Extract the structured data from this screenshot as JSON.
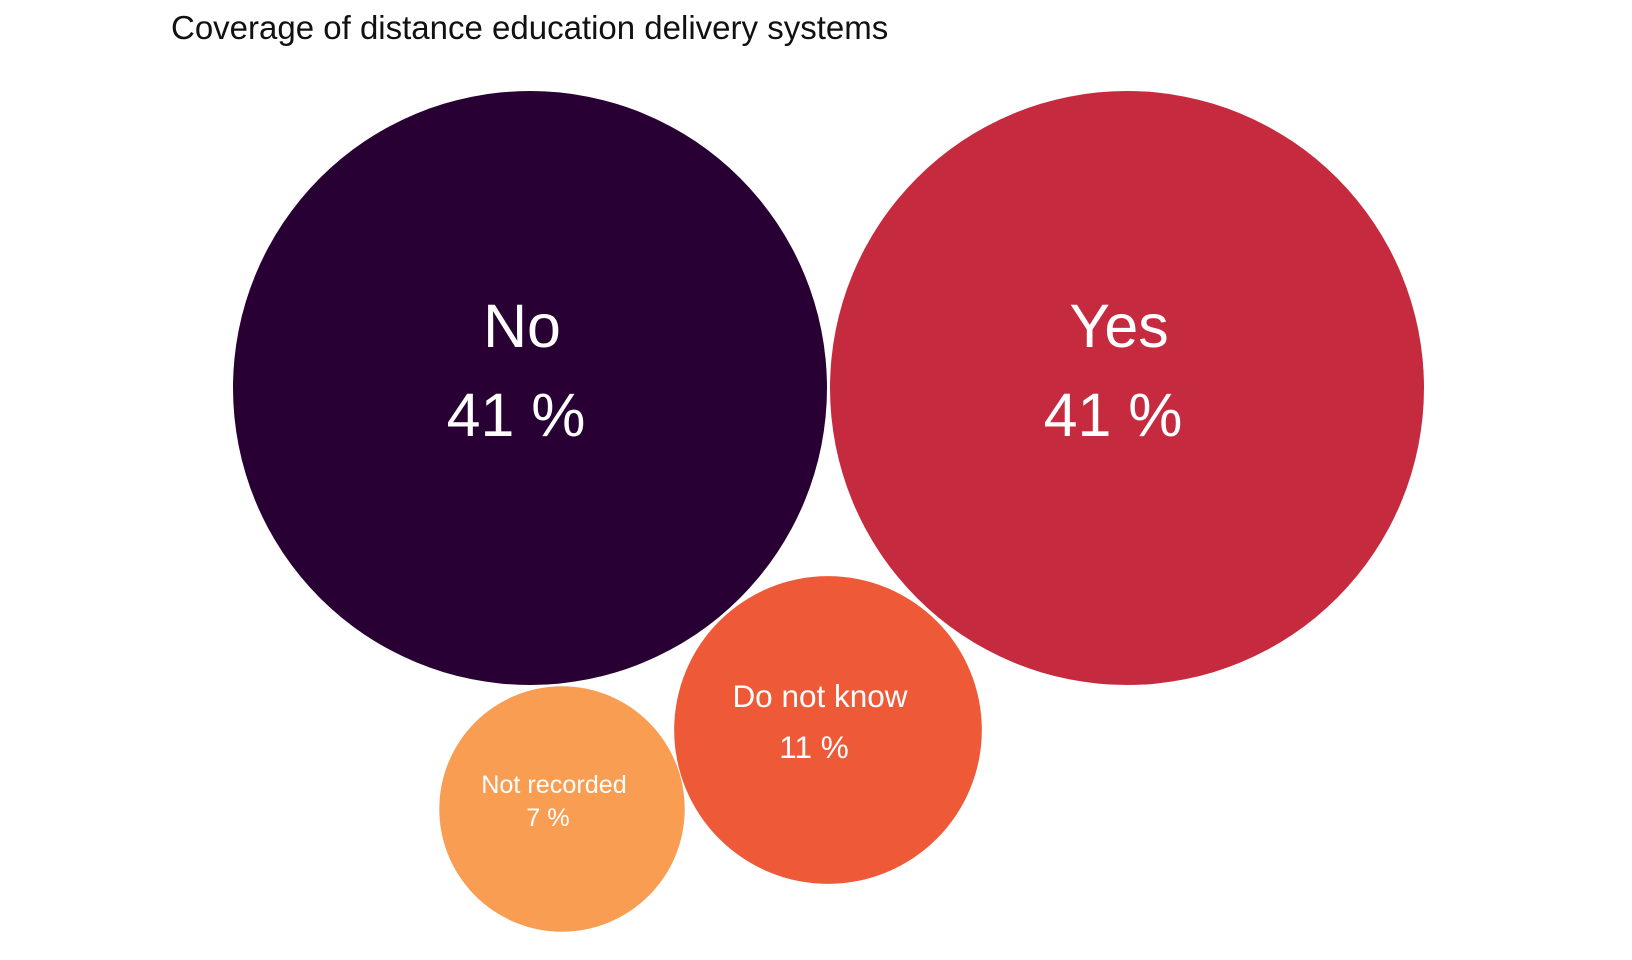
{
  "chart_data": {
    "type": "bubble",
    "title": "Coverage of distance education delivery systems",
    "unit": "%",
    "categories": [
      "No",
      "Yes",
      "Do not know",
      "Not recorded"
    ],
    "values": [
      41,
      41,
      11,
      7
    ],
    "colors": [
      "#280033",
      "#c52a3e",
      "#ee5937",
      "#f89d52"
    ],
    "label_color": "#ffffff"
  }
}
